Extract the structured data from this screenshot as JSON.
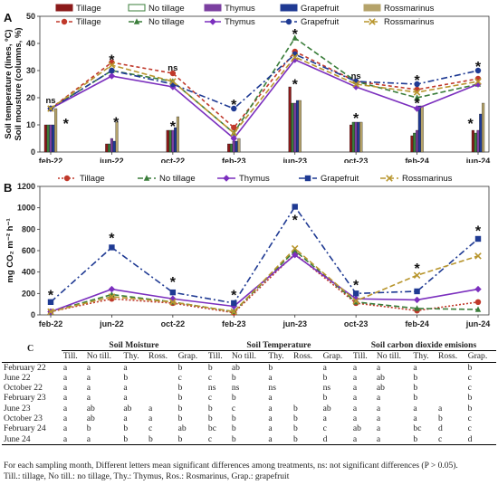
{
  "chart_data": [
    {
      "panel": "A",
      "type": "bar+line",
      "title": "",
      "ylabel": "Soil temperature (lines, ºC)\nSoil mousture (columns, %)",
      "ylabel_lines": [
        "Soil temperature (lines, ºC)",
        "Soil mousture (columns, %)"
      ],
      "ylim": [
        0,
        50
      ],
      "yticks": [
        "0",
        "10",
        "20",
        "30",
        "40",
        "50"
      ],
      "categories": [
        "feb-22",
        "jun-22",
        "oct-22",
        "feb-23",
        "jun-23",
        "oct-23",
        "feb-24",
        "jun-24"
      ],
      "grid": false,
      "legend": "top",
      "bar_series": [
        {
          "name": "Tillage",
          "color": "#8b1a1a",
          "values": [
            10,
            3,
            8,
            3,
            24,
            10,
            6,
            8
          ]
        },
        {
          "name": "No tillage",
          "color": "#3a7d3a",
          "values": [
            10,
            3,
            8,
            3,
            18,
            11,
            7,
            7
          ]
        },
        {
          "name": "Thymus",
          "color": "#7b3fa0",
          "values": [
            10,
            5,
            8,
            4,
            18,
            11,
            8,
            8
          ]
        },
        {
          "name": "Grapefruit",
          "color": "#1f3a93",
          "values": [
            10,
            4,
            9,
            4,
            19,
            11,
            17,
            14
          ]
        },
        {
          "name": "Rossmarinus",
          "color": "#b5a36a",
          "values": [
            16,
            11,
            13,
            5,
            19,
            11,
            17,
            18
          ]
        }
      ],
      "line_series": [
        {
          "name": "Tillage",
          "color": "#c0392b",
          "dash": "4,3",
          "marker": "circle",
          "values": [
            16,
            33,
            29,
            9,
            37,
            26,
            23,
            27
          ]
        },
        {
          "name": "No tillage",
          "color": "#3a7d3a",
          "dash": "6,3",
          "marker": "triangle",
          "values": [
            16,
            30,
            26,
            7,
            42,
            26,
            20,
            25
          ]
        },
        {
          "name": "Thymus",
          "color": "#7b2fbe",
          "dash": "",
          "marker": "diamond",
          "values": [
            16,
            28,
            24,
            5,
            34,
            24,
            16,
            25
          ]
        },
        {
          "name": "Grapefruit",
          "color": "#1f3a93",
          "dash": "7,3,2,3",
          "marker": "circle",
          "values": [
            16,
            30,
            25,
            16,
            36,
            26,
            25,
            30
          ]
        },
        {
          "name": "Rossmarinus",
          "color": "#b8962e",
          "dash": "6,3",
          "marker": "x",
          "values": [
            16,
            32,
            26,
            7,
            35,
            25,
            22,
            26
          ]
        }
      ],
      "annotations": [
        {
          "text": "ns",
          "category": "feb-22",
          "y": 19
        },
        {
          "text": "*",
          "category": "feb-22",
          "y": 11,
          "offset": 0.7
        },
        {
          "text": "*",
          "category": "jun-22",
          "y": 34.5
        },
        {
          "text": "*",
          "category": "jun-22",
          "y": 11.5,
          "offset": 0.2
        },
        {
          "text": "ns",
          "category": "oct-22",
          "y": 31
        },
        {
          "text": "*",
          "category": "oct-22",
          "y": 10
        },
        {
          "text": "*",
          "category": "feb-23",
          "y": 18
        },
        {
          "text": "*",
          "category": "jun-23",
          "y": 44
        },
        {
          "text": "*",
          "category": "jun-23",
          "y": 25.5
        },
        {
          "text": "ns",
          "category": "oct-23",
          "y": 28
        },
        {
          "text": "*",
          "category": "oct-23",
          "y": 13
        },
        {
          "text": "*",
          "category": "feb-24",
          "y": 27
        },
        {
          "text": "*",
          "category": "feb-24",
          "y": 18.5
        },
        {
          "text": "*",
          "category": "jun-24",
          "y": 32
        },
        {
          "text": "*",
          "category": "jun-24",
          "y": 11,
          "offset": -0.35
        }
      ]
    },
    {
      "panel": "B",
      "type": "line",
      "title": "",
      "ylabel": "mg CO₂ m⁻² h⁻¹",
      "ylim": [
        0,
        1200
      ],
      "yticks": [
        "0",
        "200",
        "400",
        "600",
        "800",
        "1000",
        "1200"
      ],
      "categories": [
        "feb-22",
        "jun-22",
        "oct-22",
        "feb-23",
        "jun-23",
        "oct-23",
        "feb-24",
        "jun-24"
      ],
      "grid": false,
      "legend": "top",
      "series": [
        {
          "name": "Tillage",
          "color": "#c0392b",
          "dash": "2,2",
          "marker": "circle",
          "values": [
            30,
            150,
            110,
            20,
            570,
            110,
            40,
            120
          ]
        },
        {
          "name": "No tillage",
          "color": "#3a7d3a",
          "dash": "6,3",
          "marker": "triangle",
          "values": [
            30,
            190,
            120,
            30,
            600,
            120,
            60,
            50
          ]
        },
        {
          "name": "Thymus",
          "color": "#7b2fbe",
          "dash": "",
          "marker": "diamond",
          "values": [
            30,
            240,
            150,
            80,
            560,
            150,
            140,
            240
          ]
        },
        {
          "name": "Grapefruit",
          "color": "#1f3a93",
          "dash": "7,3,2,3",
          "marker": "square",
          "values": [
            120,
            630,
            210,
            110,
            1010,
            200,
            220,
            710
          ]
        },
        {
          "name": "Rossmarinus",
          "color": "#b8962e",
          "dash": "6,3",
          "marker": "x",
          "values": [
            30,
            170,
            120,
            30,
            620,
            130,
            370,
            550
          ]
        }
      ],
      "annotations": [
        {
          "text": "*",
          "category": "feb-22",
          "y": 200
        },
        {
          "text": "*",
          "category": "jun-22",
          "y": 730
        },
        {
          "text": "*",
          "category": "oct-22",
          "y": 320
        },
        {
          "text": "*",
          "category": "feb-23",
          "y": 200
        },
        {
          "text": "*",
          "category": "jun-23",
          "y": 900
        },
        {
          "text": "*",
          "category": "oct-23",
          "y": 290
        },
        {
          "text": "*",
          "category": "feb-24",
          "y": 450
        },
        {
          "text": "*",
          "category": "jun-24",
          "y": 800
        }
      ]
    },
    {
      "panel": "C",
      "type": "table",
      "title": "",
      "groups": [
        "Soil Moisture",
        "Soil Temperature",
        "Soil carbon dioxide emisions"
      ],
      "columns": [
        "Till.",
        "No till.",
        "Thy.",
        "Ross.",
        "Grap."
      ],
      "rows": [
        {
          "label": "February 22",
          "cells": [
            "a",
            "a",
            "a",
            "",
            "b",
            "b",
            "ab",
            "b",
            "",
            "a",
            "a",
            "a",
            "a",
            "",
            "b"
          ]
        },
        {
          "label": "June 22",
          "cells": [
            "a",
            "a",
            "b",
            "",
            "c",
            "c",
            "b",
            "a",
            "",
            "b",
            "a",
            "ab",
            "b",
            "",
            "c"
          ]
        },
        {
          "label": "October 22",
          "cells": [
            "a",
            "a",
            "a",
            "",
            "b",
            "ns",
            "ns",
            "ns",
            "",
            "ns",
            "a",
            "ab",
            "b",
            "",
            "c"
          ]
        },
        {
          "label": "February 23",
          "cells": [
            "a",
            "a",
            "a",
            "",
            "b",
            "c",
            "b",
            "a",
            "",
            "b",
            "a",
            "a",
            "b",
            "",
            "b"
          ]
        },
        {
          "label": "June 23",
          "cells": [
            "a",
            "ab",
            "ab",
            "a",
            "b",
            "b",
            "c",
            "a",
            "b",
            "ab",
            "a",
            "a",
            "a",
            "a",
            "b"
          ]
        },
        {
          "label": "October 23",
          "cells": [
            "a",
            "ab",
            "a",
            "a",
            "b",
            "b",
            "b",
            "a",
            "b",
            "a",
            "a",
            "a",
            "a",
            "b",
            "c"
          ]
        },
        {
          "label": "February 24",
          "cells": [
            "a",
            "b",
            "b",
            "c",
            "ab",
            "bc",
            "b",
            "a",
            "b",
            "c",
            "ab",
            "a",
            "bc",
            "d",
            "c"
          ]
        },
        {
          "label": "June 24",
          "cells": [
            "a",
            "a",
            "b",
            "b",
            "b",
            "c",
            "b",
            "a",
            "b",
            "d",
            "a",
            "a",
            "b",
            "c",
            "d"
          ]
        }
      ]
    }
  ],
  "panel_labels": {
    "a": "A",
    "b": "B",
    "c": "C"
  },
  "legend_labels": [
    "Tillage",
    "No tillage",
    "Thymus",
    "Grapefruit",
    "Rossmarinus"
  ],
  "footnote_lines": [
    "For each sampling month, Different letters mean significant differences among treatments, ns: not significant differences (P > 0.05).",
    "Till.: tillage, No till.: no tillage, Thy.: Thymus, Ros.: Rosmarinus, Grap.: grapefruit"
  ]
}
